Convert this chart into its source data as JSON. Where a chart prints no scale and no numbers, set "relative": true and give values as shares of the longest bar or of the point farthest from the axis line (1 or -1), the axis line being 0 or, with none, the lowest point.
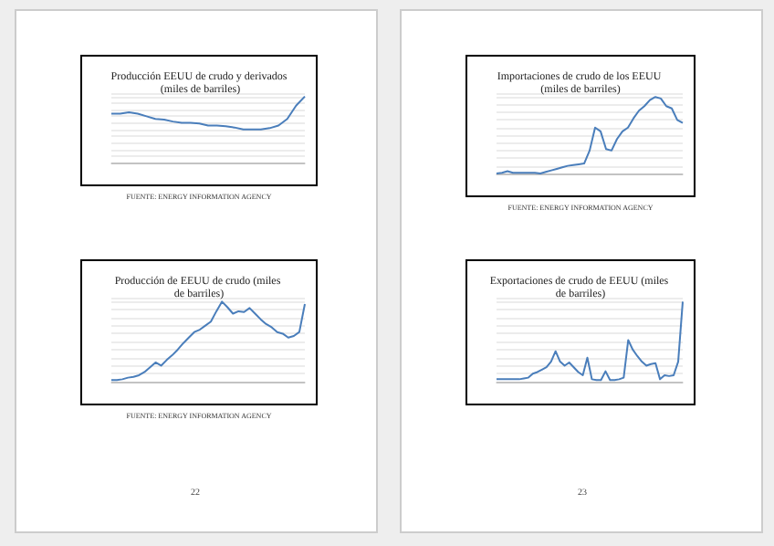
{
  "chart_data": [
    {
      "type": "line",
      "title": "Producción EEUU de crudo y derivados (miles de barriles)",
      "relative": true,
      "grid": "y",
      "marker": "none",
      "annotations": [
        "FUENTE: ENERGY INFORMATION AGENCY"
      ],
      "categories": [
        null,
        null,
        null,
        null,
        null,
        null,
        null,
        null,
        null,
        null,
        null,
        null,
        null,
        null,
        null,
        null,
        null,
        null,
        null,
        null,
        null,
        null,
        null
      ],
      "series": [
        {
          "color": "#4a7ebb",
          "values": [
            0.74,
            0.74,
            0.76,
            0.74,
            0.7,
            0.66,
            0.65,
            0.62,
            0.6,
            0.6,
            0.59,
            0.56,
            0.56,
            0.55,
            0.53,
            0.5,
            0.5,
            0.5,
            0.52,
            0.56,
            0.66,
            0.86,
            1.0
          ]
        }
      ]
    },
    {
      "type": "line",
      "title": "Producción de EEUU de crudo (miles de barriles)",
      "relative": true,
      "grid": "y",
      "marker": "none",
      "annotations": [
        "FUENTE: ENERGY INFORMATION AGENCY",
        "22"
      ],
      "categories": [
        null,
        null,
        null,
        null,
        null,
        null,
        null,
        null,
        null,
        null,
        null,
        null,
        null,
        null,
        null,
        null,
        null,
        null,
        null,
        null,
        null,
        null,
        null,
        null,
        null,
        null,
        null,
        null,
        null,
        null,
        null,
        null,
        null,
        null,
        null,
        null
      ],
      "series": [
        {
          "color": "#4a7ebb",
          "values": [
            0.02,
            0.02,
            0.03,
            0.05,
            0.06,
            0.08,
            0.12,
            0.18,
            0.24,
            0.2,
            0.27,
            0.33,
            0.4,
            0.48,
            0.55,
            0.62,
            0.65,
            0.7,
            0.75,
            0.88,
            1.0,
            0.93,
            0.85,
            0.88,
            0.87,
            0.92,
            0.85,
            0.78,
            0.72,
            0.68,
            0.62,
            0.6,
            0.55,
            0.57,
            0.62,
            0.97
          ]
        }
      ]
    },
    {
      "type": "line",
      "title": "Importaciones de crudo de los EEUU (miles de barriles)",
      "relative": true,
      "grid": "y",
      "marker": "none",
      "annotations": [
        "FUENTE: ENERGY INFORMATION AGENCY"
      ],
      "categories": [
        null,
        null,
        null,
        null,
        null,
        null,
        null,
        null,
        null,
        null,
        null,
        null,
        null,
        null,
        null,
        null,
        null,
        null,
        null,
        null,
        null,
        null,
        null,
        null,
        null,
        null,
        null,
        null,
        null,
        null,
        null,
        null,
        null,
        null,
        null
      ],
      "series": [
        {
          "color": "#4a7ebb",
          "values": [
            0,
            0.01,
            0.03,
            0.01,
            0.01,
            0.01,
            0.01,
            0.01,
            0.0,
            0.02,
            0.04,
            0.06,
            0.08,
            0.1,
            0.11,
            0.12,
            0.13,
            0.3,
            0.6,
            0.55,
            0.32,
            0.3,
            0.45,
            0.55,
            0.6,
            0.72,
            0.82,
            0.88,
            0.96,
            1.0,
            0.98,
            0.88,
            0.85,
            0.7,
            0.66
          ]
        }
      ]
    },
    {
      "type": "line",
      "title": "Exportaciones de crudo de EEUU (miles de barriles)",
      "relative": true,
      "grid": "y",
      "marker": "none",
      "annotations": [
        "23"
      ],
      "categories": [
        null,
        null,
        null,
        null,
        null,
        null,
        null,
        null,
        null,
        null,
        null,
        null,
        null,
        null,
        null,
        null,
        null,
        null,
        null,
        null,
        null,
        null,
        null,
        null,
        null,
        null,
        null,
        null,
        null,
        null,
        null,
        null,
        null,
        null,
        null,
        null,
        null,
        null,
        null,
        null,
        null,
        null
      ],
      "series": [
        {
          "color": "#4a7ebb",
          "values": [
            0.03,
            0.03,
            0.03,
            0.03,
            0.03,
            0.03,
            0.04,
            0.05,
            0.1,
            0.12,
            0.15,
            0.18,
            0.25,
            0.38,
            0.25,
            0.2,
            0.24,
            0.18,
            0.12,
            0.08,
            0.3,
            0.03,
            0.02,
            0.02,
            0.13,
            0.02,
            0.02,
            0.03,
            0.05,
            0.52,
            0.4,
            0.32,
            0.25,
            0.2,
            0.22,
            0.23,
            0.03,
            0.08,
            0.07,
            0.08,
            0.25,
            1.0
          ]
        }
      ]
    }
  ]
}
